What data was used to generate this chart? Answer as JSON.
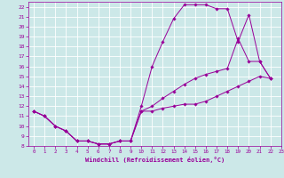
{
  "xlabel": "Windchill (Refroidissement éolien,°C)",
  "bg_color": "#cce8e8",
  "line_color": "#990099",
  "grid_color": "#aacccc",
  "xlim": [
    -0.5,
    23
  ],
  "ylim": [
    8,
    22.5
  ],
  "xticks": [
    0,
    1,
    2,
    3,
    4,
    5,
    6,
    7,
    8,
    9,
    10,
    11,
    12,
    13,
    14,
    15,
    16,
    17,
    18,
    19,
    20,
    21,
    22,
    23
  ],
  "yticks": [
    8,
    9,
    10,
    11,
    12,
    13,
    14,
    15,
    16,
    17,
    18,
    19,
    20,
    21,
    22
  ],
  "series": [
    {
      "x": [
        0,
        1,
        2,
        3,
        4,
        5,
        6,
        7,
        8,
        9,
        10,
        11,
        12,
        13,
        14,
        15,
        16,
        17,
        18,
        19,
        20,
        21,
        22
      ],
      "y": [
        11.5,
        11.0,
        10.0,
        9.5,
        8.5,
        8.5,
        8.2,
        8.2,
        8.5,
        8.5,
        12.0,
        16.0,
        18.5,
        20.8,
        22.2,
        22.2,
        22.2,
        21.8,
        21.8,
        18.5,
        21.2,
        16.5,
        14.8
      ]
    },
    {
      "x": [
        0,
        1,
        2,
        3,
        4,
        5,
        6,
        7,
        8,
        9,
        10,
        11,
        12,
        13,
        14,
        15,
        16,
        17,
        18,
        19,
        20,
        21,
        22
      ],
      "y": [
        11.5,
        11.0,
        10.0,
        9.5,
        8.5,
        8.5,
        8.2,
        8.2,
        8.5,
        8.5,
        11.5,
        12.0,
        12.8,
        13.5,
        14.2,
        14.8,
        15.2,
        15.5,
        15.8,
        18.8,
        16.5,
        16.5,
        14.8
      ]
    },
    {
      "x": [
        0,
        1,
        2,
        3,
        4,
        5,
        6,
        7,
        8,
        9,
        10,
        11,
        12,
        13,
        14,
        15,
        16,
        17,
        18,
        19,
        20,
        21,
        22
      ],
      "y": [
        11.5,
        11.0,
        10.0,
        9.5,
        8.5,
        8.5,
        8.2,
        8.2,
        8.5,
        8.5,
        11.5,
        11.5,
        11.8,
        12.0,
        12.2,
        12.2,
        12.5,
        13.0,
        13.5,
        14.0,
        14.5,
        15.0,
        14.8
      ]
    }
  ]
}
